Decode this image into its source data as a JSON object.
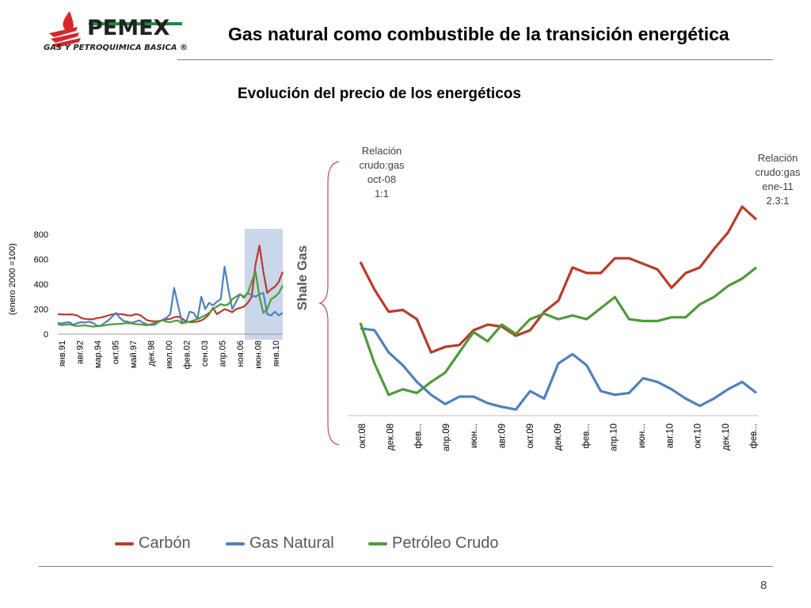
{
  "header": {
    "title": "Gas natural como combustible de la transición energética",
    "subtitle": "Evolución del precio de los energéticos",
    "page_number": "8"
  },
  "logo": {
    "name": "PEMEX",
    "tagline": "GAS Y PETROQUIMICA BASICA ®",
    "colors": {
      "red": "#d5262b",
      "green": "#1c8d3e"
    }
  },
  "annotations": {
    "left": [
      "Relación",
      "crudo:gas",
      "oct-08",
      "1:1"
    ],
    "right": [
      "Relación",
      "crudo:gas",
      "ene-11",
      "2.3:1"
    ],
    "brace_label": "Shale Gas"
  },
  "legend": [
    {
      "label": "Carbón",
      "color": "#b83c2b"
    },
    {
      "label": "Gas Natural",
      "color": "#4f81bd"
    },
    {
      "label": "Petróleo Crudo",
      "color": "#4e9a3b"
    }
  ],
  "chart_data": [
    {
      "type": "line",
      "ylabel": "(enero 2000 =100)",
      "ylim": [
        0,
        800
      ],
      "yticks": [
        0,
        200,
        400,
        600,
        800
      ],
      "xtick_labels": [
        "янв.91",
        "авг.92",
        "мар.94",
        "окт.95",
        "май.97",
        "дек.98",
        "июл.00",
        "фев.02",
        "сен.03",
        "апр.05",
        "ноя.06",
        "июн.08",
        "янв.10"
      ],
      "highlight_range": "окт.08 – фев.11",
      "series": [
        {
          "name": "Carbón",
          "color": "#b83c2b",
          "values": [
            160,
            158,
            157,
            158,
            156,
            150,
            130,
            122,
            120,
            118,
            128,
            132,
            140,
            150,
            158,
            162,
            160,
            158,
            150,
            148,
            160,
            155,
            135,
            112,
            105,
            103,
            104,
            110,
            118,
            122,
            135,
            140,
            125,
            105,
            95,
            97,
            100,
            110,
            128,
            160,
            210,
            160,
            180,
            200,
            190,
            175,
            200,
            210,
            220,
            250,
            300,
            560,
            710,
            500,
            330,
            360,
            380,
            420,
            500
          ]
        },
        {
          "name": "Gas Natural",
          "color": "#4f81bd",
          "values": [
            90,
            85,
            92,
            95,
            75,
            88,
            95,
            92,
            100,
            90,
            70,
            65,
            88,
            110,
            140,
            170,
            130,
            105,
            100,
            90,
            100,
            110,
            90,
            78,
            72,
            75,
            95,
            115,
            130,
            160,
            370,
            230,
            100,
            90,
            180,
            170,
            120,
            300,
            200,
            250,
            230,
            260,
            280,
            540,
            360,
            200,
            260,
            320,
            300,
            330,
            310,
            300,
            320,
            330,
            160,
            150,
            180,
            150,
            170
          ]
        },
        {
          "name": "Petróleo Crudo",
          "color": "#4e9a3b",
          "values": [
            80,
            72,
            75,
            78,
            70,
            65,
            68,
            70,
            65,
            60,
            62,
            66,
            70,
            75,
            78,
            80,
            82,
            85,
            88,
            85,
            80,
            78,
            75,
            70,
            80,
            90,
            100,
            110,
            100,
            95,
            105,
            110,
            85,
            95,
            100,
            110,
            120,
            135,
            150,
            170,
            200,
            220,
            240,
            230,
            240,
            280,
            300,
            320,
            290,
            330,
            420,
            500,
            300,
            170,
            200,
            280,
            300,
            330,
            390
          ]
        }
      ]
    },
    {
      "type": "line",
      "title": "",
      "xtick_labels": [
        "окт.08",
        "дек.08",
        "фев...",
        "апр.09",
        "июн...",
        "авг.09",
        "окт.09",
        "дек.09",
        "фев...",
        "апр.10",
        "июн...",
        "авг.10",
        "окт.10",
        "дек.10",
        "фев..."
      ],
      "series": [
        {
          "name": "Carbón",
          "color": "#b83c2b",
          "values": [
            750,
            600,
            480,
            490,
            440,
            260,
            290,
            300,
            380,
            410,
            400,
            350,
            380,
            480,
            540,
            720,
            690,
            690,
            770,
            770,
            740,
            710,
            610,
            690,
            720,
            820,
            910,
            1050,
            980
          ]
        },
        {
          "name": "Gas Natural",
          "color": "#4f81bd",
          "values": [
            390,
            380,
            260,
            190,
            100,
            30,
            -20,
            20,
            20,
            -15,
            -35,
            -50,
            50,
            10,
            200,
            250,
            190,
            50,
            30,
            40,
            120,
            100,
            60,
            10,
            -30,
            10,
            60,
            100,
            40
          ]
        },
        {
          "name": "Petróleo Crudo",
          "color": "#4e9a3b",
          "values": [
            420,
            200,
            30,
            60,
            40,
            100,
            150,
            260,
            370,
            320,
            410,
            360,
            440,
            470,
            440,
            460,
            440,
            500,
            560,
            440,
            430,
            430,
            450,
            450,
            520,
            560,
            620,
            660,
            720
          ]
        }
      ]
    }
  ]
}
